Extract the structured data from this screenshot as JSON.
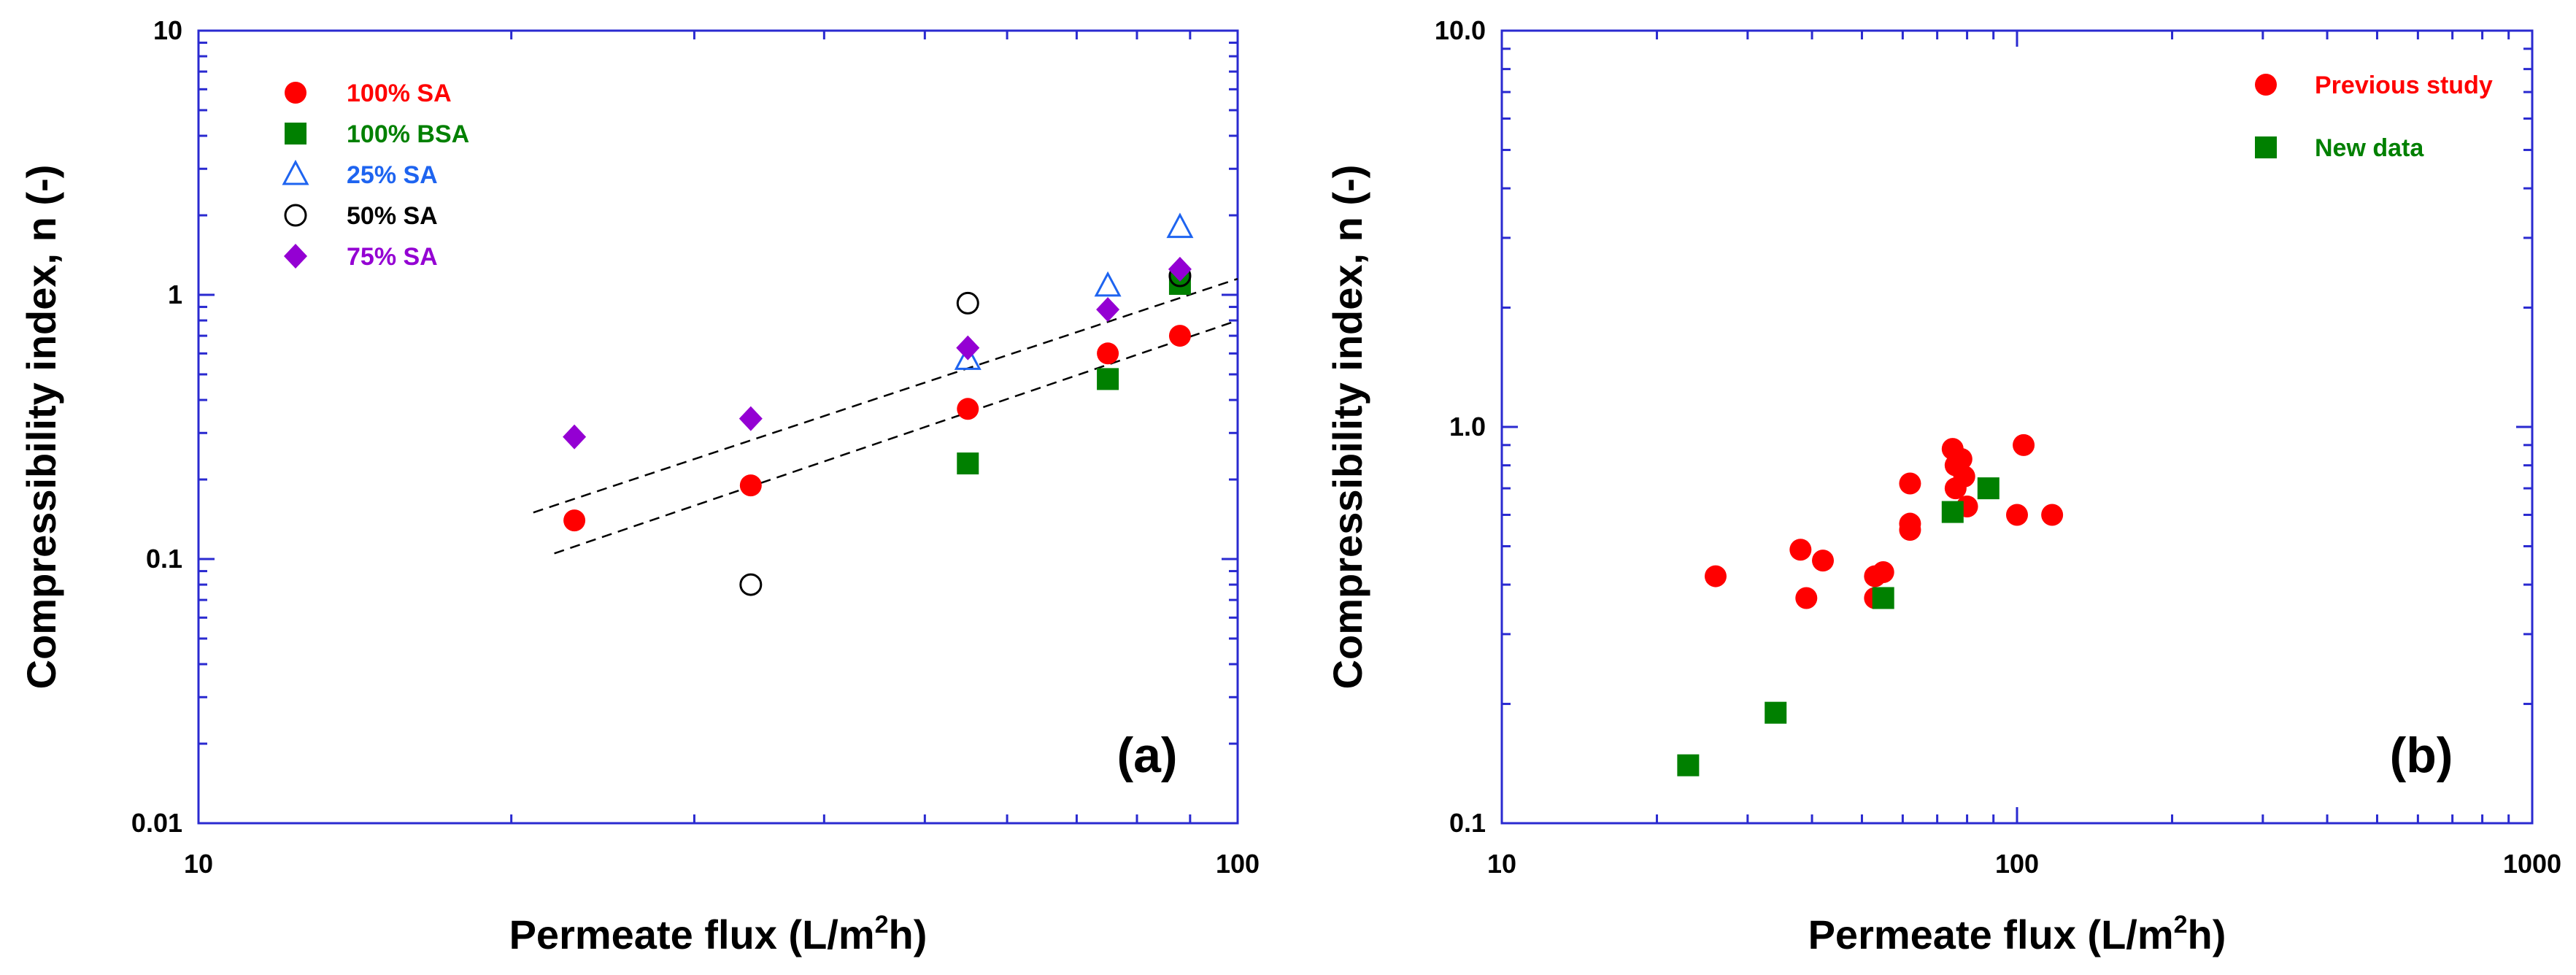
{
  "chart_data": [
    {
      "panel": "(a)",
      "type": "scatter",
      "xscale": "log",
      "yscale": "log",
      "xlim": [
        10,
        100
      ],
      "ylim": [
        0.01,
        10
      ],
      "xlabel": "Permeate flux (L/m",
      "xlabel_sup": "2",
      "xlabel_end": "h)",
      "ylabel": "Compressibility index, n (-)",
      "xticks": [
        {
          "value": 10,
          "label": "10"
        },
        {
          "value": 100,
          "label": "100"
        }
      ],
      "yticks": [
        {
          "value": 0.01,
          "label": "0.01"
        },
        {
          "value": 0.1,
          "label": "0.1"
        },
        {
          "value": 1,
          "label": "1"
        },
        {
          "value": 10,
          "label": "10"
        }
      ],
      "legend_position": "top-left",
      "series": [
        {
          "name": "100% SA",
          "marker": "circle-filled",
          "color": "#ff0000",
          "x": [
            23,
            34,
            55,
            75,
            88
          ],
          "y": [
            0.14,
            0.19,
            0.37,
            0.6,
            0.7
          ]
        },
        {
          "name": "100% BSA",
          "marker": "square-filled",
          "color": "#008000",
          "x": [
            55,
            75,
            88
          ],
          "y": [
            0.23,
            0.48,
            1.1
          ]
        },
        {
          "name": "25% SA",
          "marker": "triangle-open",
          "color": "#1e64f0",
          "x": [
            55,
            75,
            88
          ],
          "y": [
            0.57,
            1.08,
            1.8
          ]
        },
        {
          "name": "50% SA",
          "marker": "circle-open",
          "color": "#000000",
          "x": [
            34,
            55,
            88
          ],
          "y": [
            0.08,
            0.93,
            1.18
          ]
        },
        {
          "name": "75% SA",
          "marker": "diamond-filled",
          "color": "#9400d3",
          "x": [
            23,
            34,
            55,
            75,
            88
          ],
          "y": [
            0.29,
            0.34,
            0.63,
            0.88,
            1.25
          ]
        }
      ],
      "fit_lines": [
        {
          "name": "upper-fit",
          "x": [
            21,
            100
          ],
          "y": [
            0.15,
            1.15
          ]
        },
        {
          "name": "lower-fit",
          "x": [
            22,
            100
          ],
          "y": [
            0.105,
            0.8
          ]
        }
      ]
    },
    {
      "panel": "(b)",
      "type": "scatter",
      "xscale": "log",
      "yscale": "log",
      "xlim": [
        10,
        1000
      ],
      "ylim": [
        0.1,
        10
      ],
      "xlabel": "Permeate flux (L/m",
      "xlabel_sup": "2",
      "xlabel_end": "h)",
      "ylabel": "Compressibility index, n (-)",
      "xticks": [
        {
          "value": 10,
          "label": "10"
        },
        {
          "value": 100,
          "label": "100"
        },
        {
          "value": 1000,
          "label": "1000"
        }
      ],
      "yticks": [
        {
          "value": 0.1,
          "label": "0.1"
        },
        {
          "value": 1,
          "label": "1.0"
        },
        {
          "value": 10,
          "label": "10.0"
        }
      ],
      "legend_position": "top-right",
      "series": [
        {
          "name": "Previous study",
          "marker": "circle-filled",
          "color": "#ff0000",
          "x": [
            26,
            38,
            39,
            42,
            53,
            53,
            55,
            62,
            62,
            62,
            75,
            76,
            76,
            78,
            79,
            80,
            100,
            103,
            117
          ],
          "y": [
            0.42,
            0.49,
            0.37,
            0.46,
            0.37,
            0.42,
            0.43,
            0.72,
            0.57,
            0.55,
            0.88,
            0.8,
            0.7,
            0.83,
            0.75,
            0.63,
            0.6,
            0.9,
            0.6
          ]
        },
        {
          "name": "New data",
          "marker": "square-filled",
          "color": "#008000",
          "x": [
            23,
            34,
            55,
            75,
            88
          ],
          "y": [
            0.14,
            0.19,
            0.37,
            0.61,
            0.7
          ]
        }
      ]
    }
  ]
}
